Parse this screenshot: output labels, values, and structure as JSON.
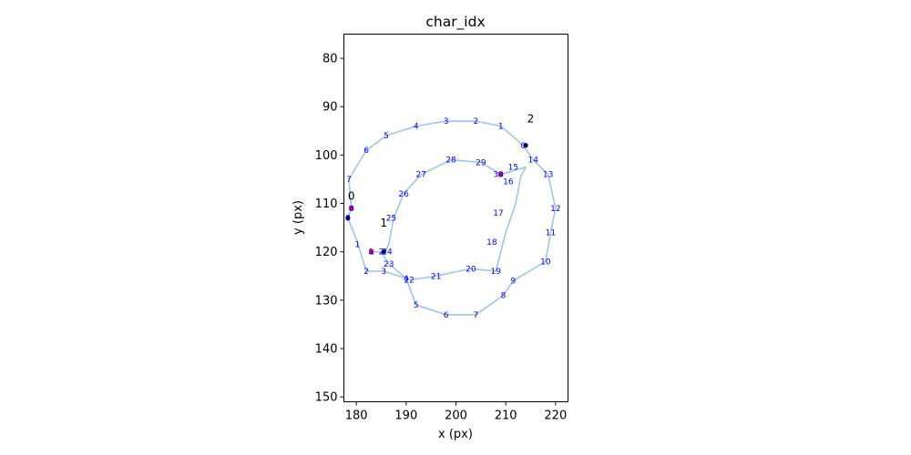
{
  "chart_data": {
    "type": "line",
    "title": "char_idx",
    "xlabel": "x (px)",
    "ylabel": "y (px)",
    "xlim": [
      177.5,
      222.5
    ],
    "ylim": [
      151,
      75
    ],
    "xticks": [
      180,
      190,
      200,
      210,
      220
    ],
    "yticks": [
      80,
      90,
      100,
      110,
      120,
      130,
      140,
      150
    ],
    "grid": false,
    "series": [
      {
        "label": "0",
        "points": [
          [
            179,
            111
          ],
          [
            178.3,
            113
          ],
          [
            180.2,
            118
          ],
          [
            182,
            124
          ],
          [
            185.5,
            124
          ],
          [
            190,
            125.5
          ],
          [
            192,
            131
          ],
          [
            198,
            133
          ],
          [
            204,
            133
          ],
          [
            209.5,
            129
          ],
          [
            211.5,
            126
          ],
          [
            218,
            122
          ],
          [
            219,
            116
          ],
          [
            220,
            111
          ],
          [
            218.5,
            104
          ],
          [
            215.5,
            101
          ],
          [
            213.5,
            98
          ],
          [
            209,
            94
          ],
          [
            204,
            93
          ],
          [
            198,
            93
          ],
          [
            192,
            94
          ],
          [
            186,
            96
          ],
          [
            182,
            99
          ],
          [
            178.5,
            105
          ],
          [
            179,
            111
          ]
        ]
      },
      {
        "label": "1",
        "points": [
          [
            183,
            120
          ],
          [
            185,
            120
          ],
          [
            186.5,
            122.5
          ],
          [
            190.2,
            125.6
          ],
          [
            191,
            125.8
          ],
          [
            196,
            125
          ],
          [
            203,
            123.5
          ],
          [
            208,
            124
          ],
          [
            210,
            116
          ],
          [
            212,
            110
          ],
          [
            213,
            104.5
          ],
          [
            214,
            102.5
          ],
          [
            209,
            104
          ],
          [
            205,
            101.5
          ],
          [
            199,
            101
          ],
          [
            193,
            104
          ],
          [
            189.5,
            108
          ],
          [
            187.5,
            113
          ],
          [
            186.5,
            118.5
          ],
          [
            185.5,
            120.5
          ]
        ]
      },
      {
        "label": "2",
        "points": [
          [
            214,
            98
          ],
          [
            214,
            98
          ]
        ]
      }
    ],
    "point_labels": [
      {
        "x": 179,
        "y": 111,
        "t": "0"
      },
      {
        "x": 180.2,
        "y": 118.5,
        "t": "1"
      },
      {
        "x": 182,
        "y": 124,
        "t": "2"
      },
      {
        "x": 185.5,
        "y": 124,
        "t": "3"
      },
      {
        "x": 190,
        "y": 125.5,
        "t": "4"
      },
      {
        "x": 192,
        "y": 131,
        "t": "5"
      },
      {
        "x": 198,
        "y": 133,
        "t": "6"
      },
      {
        "x": 204,
        "y": 133,
        "t": "7"
      },
      {
        "x": 209.5,
        "y": 129,
        "t": "8"
      },
      {
        "x": 211.5,
        "y": 126,
        "t": "9"
      },
      {
        "x": 218,
        "y": 122,
        "t": "10"
      },
      {
        "x": 219,
        "y": 116,
        "t": "11"
      },
      {
        "x": 220,
        "y": 111,
        "t": "12"
      },
      {
        "x": 218.5,
        "y": 104,
        "t": "13"
      },
      {
        "x": 215.5,
        "y": 101,
        "t": "14"
      },
      {
        "x": 213.5,
        "y": 98,
        "t": "0"
      },
      {
        "x": 209,
        "y": 94,
        "t": "1"
      },
      {
        "x": 204,
        "y": 93,
        "t": "2"
      },
      {
        "x": 198,
        "y": 93,
        "t": "3"
      },
      {
        "x": 192,
        "y": 94,
        "t": "4"
      },
      {
        "x": 186,
        "y": 96,
        "t": "5"
      },
      {
        "x": 182,
        "y": 99,
        "t": "6"
      },
      {
        "x": 178.5,
        "y": 105,
        "t": "7"
      },
      {
        "x": 178.3,
        "y": 113,
        "t": "8"
      },
      {
        "x": 183,
        "y": 120,
        "t": "1"
      },
      {
        "x": 185,
        "y": 120,
        "t": "2"
      },
      {
        "x": 186.2,
        "y": 120,
        "t": "24"
      },
      {
        "x": 186.5,
        "y": 122.5,
        "t": "23"
      },
      {
        "x": 190.6,
        "y": 125.8,
        "t": "22"
      },
      {
        "x": 196,
        "y": 125,
        "t": "21"
      },
      {
        "x": 203,
        "y": 123.5,
        "t": "20"
      },
      {
        "x": 208,
        "y": 124,
        "t": "19"
      },
      {
        "x": 207.2,
        "y": 118,
        "t": "18"
      },
      {
        "x": 208.5,
        "y": 112,
        "t": "17"
      },
      {
        "x": 210.5,
        "y": 105.5,
        "t": "16"
      },
      {
        "x": 211.5,
        "y": 102.5,
        "t": "15"
      },
      {
        "x": 208.5,
        "y": 104,
        "t": "30"
      },
      {
        "x": 205,
        "y": 101.5,
        "t": "29"
      },
      {
        "x": 199,
        "y": 101,
        "t": "28"
      },
      {
        "x": 193,
        "y": 104,
        "t": "27"
      },
      {
        "x": 189.5,
        "y": 108,
        "t": "26"
      },
      {
        "x": 187,
        "y": 113,
        "t": "25"
      }
    ],
    "stroke_labels": [
      {
        "x": 179,
        "y": 108.5,
        "t": "0"
      },
      {
        "x": 185.5,
        "y": 114,
        "t": "1"
      },
      {
        "x": 215,
        "y": 92.5,
        "t": "2"
      }
    ],
    "start_markers": [
      [
        179,
        111
      ],
      [
        183,
        120
      ],
      [
        209,
        104
      ]
    ],
    "end_markers": [
      [
        178.3,
        113
      ],
      [
        185.5,
        120
      ],
      [
        214,
        98
      ]
    ],
    "colors": {
      "line": "#9fc5e8",
      "point_label": "#0000ff",
      "start": "#cc0066",
      "end": "#000033"
    }
  }
}
